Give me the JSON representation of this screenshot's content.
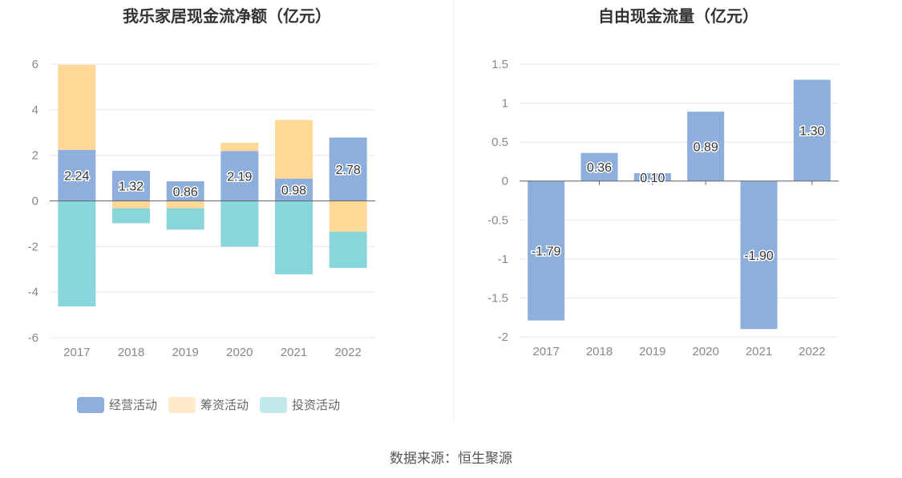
{
  "chart_data": [
    {
      "type": "bar",
      "stacked": true,
      "title": "我乐家居现金流净额（亿元）",
      "categories": [
        "2017",
        "2018",
        "2019",
        "2020",
        "2021",
        "2022"
      ],
      "ylim": [
        -6,
        6
      ],
      "yticks": [
        6,
        4,
        2,
        0,
        -2,
        -4,
        -6
      ],
      "grid": true,
      "legend_position": "bottom",
      "series": [
        {
          "name": "经营活动",
          "color": "#8eaedb",
          "values": [
            2.24,
            1.32,
            0.86,
            2.19,
            0.98,
            2.78
          ],
          "labels": [
            "2.24",
            "1.32",
            "0.86",
            "2.19",
            "0.98",
            "2.78"
          ]
        },
        {
          "name": "筹资活动",
          "color": "#ffd898",
          "legend_color": "#ffe9c6",
          "values": [
            3.73,
            -0.32,
            -0.32,
            0.36,
            2.57,
            -1.35
          ]
        },
        {
          "name": "投资活动",
          "color": "#88d6da",
          "legend_color": "#bfe9eb",
          "values": [
            -4.63,
            -0.66,
            -0.94,
            -2.01,
            -3.22,
            -1.59
          ]
        }
      ]
    },
    {
      "type": "bar",
      "title": "自由现金流量（亿元）",
      "categories": [
        "2017",
        "2018",
        "2019",
        "2020",
        "2021",
        "2022"
      ],
      "ylim": [
        -2,
        1.5
      ],
      "yticks": [
        1.5,
        1,
        0.5,
        0,
        -0.5,
        -1,
        -1.5,
        -2
      ],
      "ytick_labels": [
        "1.5",
        "1",
        "0.5",
        "0",
        "-0.5",
        "-1",
        "-1.5",
        "-2"
      ],
      "grid": true,
      "series": [
        {
          "color": "#8eaedb",
          "values": [
            -1.79,
            0.36,
            0.1,
            0.89,
            -1.9,
            1.3
          ],
          "labels": [
            "-1.79",
            "0.36",
            "0.10",
            "0.89",
            "-1.90",
            "1.30"
          ]
        }
      ]
    }
  ],
  "source": "数据来源：恒生聚源"
}
